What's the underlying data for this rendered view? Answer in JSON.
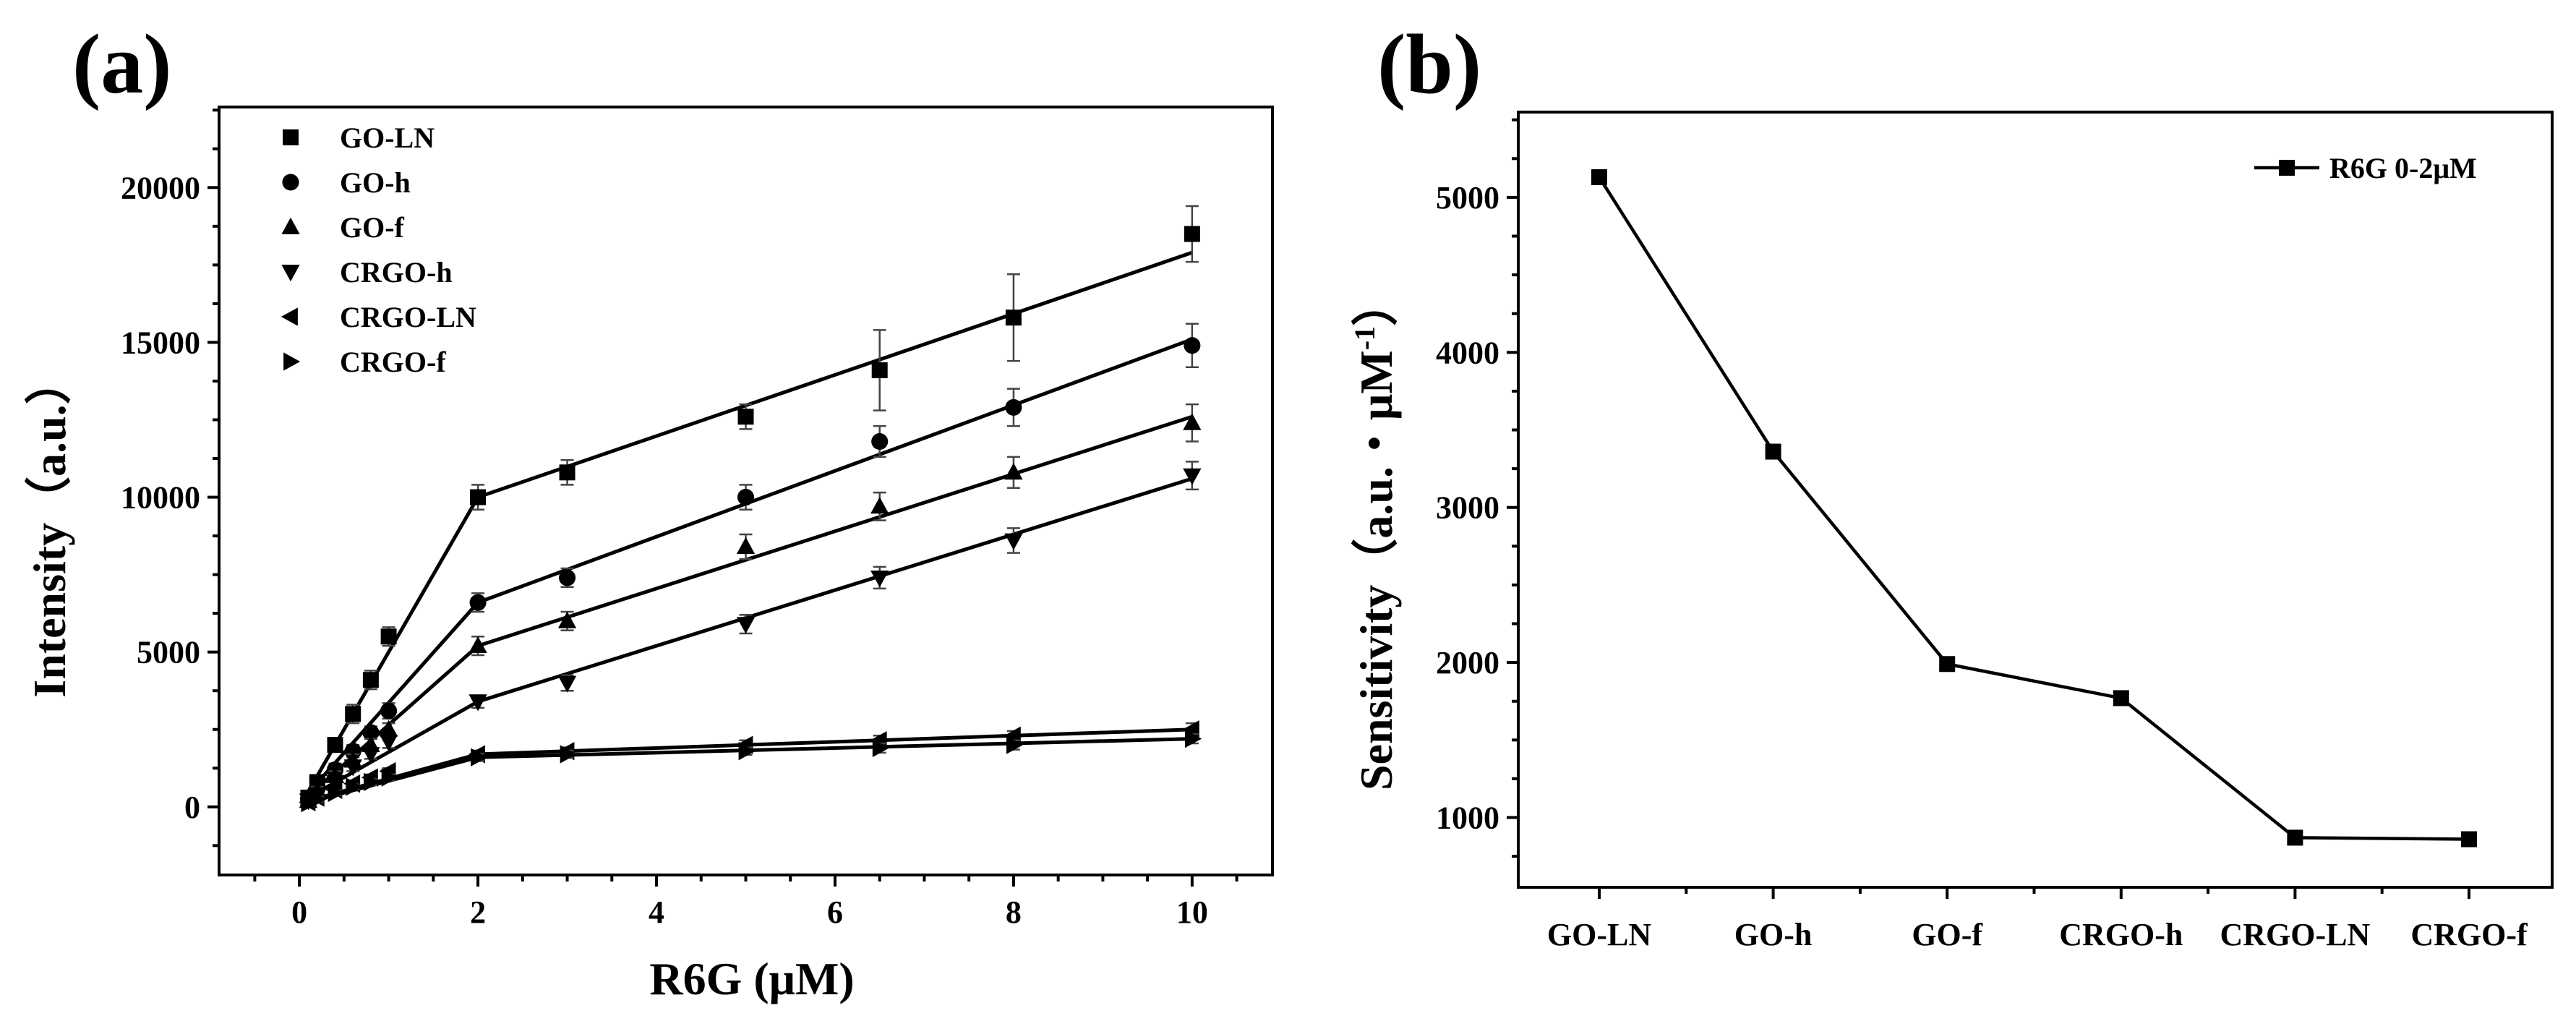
{
  "chart_data": [
    {
      "panel": "(a)",
      "type": "scatter",
      "xlabel": "R6G (μM)",
      "ylabel": "Intensity（a.u.）",
      "xlim": [
        -0.9,
        10.9
      ],
      "ylim": [
        -2200,
        22600
      ],
      "xticks": [
        0,
        2,
        4,
        6,
        8,
        10
      ],
      "yticks": [
        0,
        5000,
        10000,
        15000,
        20000
      ],
      "legend_position": "top-left",
      "series": [
        {
          "name": "GO-LN",
          "marker": "square",
          "x": [
            0.1,
            0.2,
            0.4,
            0.6,
            0.8,
            1,
            2,
            3,
            5,
            6.5,
            8,
            10
          ],
          "y": [
            300,
            800,
            2000,
            3000,
            4100,
            5500,
            10000,
            10800,
            12600,
            14100,
            15800,
            18500
          ],
          "err": [
            200,
            200,
            200,
            300,
            300,
            300,
            400,
            400,
            400,
            1300,
            1400,
            900
          ],
          "fit": [
            [
              0.1,
              500
            ],
            [
              2,
              10000
            ],
            [
              10,
              17900
            ]
          ]
        },
        {
          "name": "GO-h",
          "marker": "circle",
          "x": [
            0.1,
            0.2,
            0.4,
            0.6,
            0.8,
            1,
            2,
            3,
            5,
            6.5,
            8,
            10
          ],
          "y": [
            250,
            600,
            1200,
            1800,
            2400,
            3100,
            6600,
            7400,
            10000,
            11800,
            12900,
            14900
          ],
          "err": [
            150,
            150,
            200,
            200,
            200,
            250,
            300,
            300,
            400,
            500,
            600,
            700
          ],
          "fit": [
            [
              0.1,
              450
            ],
            [
              2,
              6600
            ],
            [
              10,
              15100
            ]
          ]
        },
        {
          "name": "GO-f",
          "marker": "triangle-up",
          "x": [
            0.1,
            0.2,
            0.4,
            0.6,
            0.8,
            1,
            2,
            3,
            5,
            6.5,
            8,
            10
          ],
          "y": [
            200,
            500,
            1000,
            1500,
            2000,
            2500,
            5200,
            6000,
            8400,
            9700,
            10800,
            12400
          ],
          "err": [
            150,
            150,
            150,
            200,
            200,
            200,
            300,
            300,
            400,
            450,
            500,
            600
          ],
          "fit": [
            [
              0.1,
              350
            ],
            [
              2,
              5200
            ],
            [
              10,
              12600
            ]
          ]
        },
        {
          "name": "CRGO-h",
          "marker": "triangle-down",
          "x": [
            0.1,
            0.2,
            0.4,
            0.6,
            0.8,
            1,
            2,
            3,
            5,
            6.5,
            8,
            10
          ],
          "y": [
            200,
            400,
            800,
            1300,
            1700,
            2100,
            3400,
            4000,
            5900,
            7400,
            8600,
            10700
          ],
          "err": [
            100,
            100,
            150,
            150,
            150,
            200,
            200,
            250,
            300,
            350,
            400,
            450
          ],
          "fit": [
            [
              0.1,
              300
            ],
            [
              2,
              3400
            ],
            [
              10,
              10600
            ]
          ]
        },
        {
          "name": "CRGO-LN",
          "marker": "triangle-left",
          "x": [
            0.1,
            0.2,
            0.4,
            0.6,
            0.8,
            1,
            2,
            3,
            5,
            6.5,
            8,
            10
          ],
          "y": [
            150,
            300,
            550,
            750,
            950,
            1150,
            1700,
            1800,
            2000,
            2150,
            2300,
            2500
          ],
          "err": [
            80,
            80,
            80,
            100,
            100,
            100,
            120,
            120,
            150,
            150,
            150,
            200
          ],
          "fit": [
            [
              0.1,
              200
            ],
            [
              2,
              1700
            ],
            [
              10,
              2500
            ]
          ]
        },
        {
          "name": "CRGO-f",
          "marker": "triangle-right",
          "x": [
            0.1,
            0.2,
            0.4,
            0.6,
            0.8,
            1,
            2,
            3,
            5,
            6.5,
            8,
            10
          ],
          "y": [
            120,
            250,
            450,
            650,
            800,
            950,
            1600,
            1700,
            1800,
            1900,
            2000,
            2200
          ],
          "err": [
            80,
            80,
            80,
            80,
            100,
            100,
            120,
            120,
            120,
            150,
            150,
            150
          ],
          "fit": [
            [
              0.1,
              150
            ],
            [
              2,
              1600
            ],
            [
              10,
              2200
            ]
          ]
        }
      ]
    },
    {
      "panel": "(b)",
      "type": "line",
      "xlabel": "",
      "ylabel": "Sensitivity（a.u.・μM⁻¹）",
      "ylabel_main": "Sensitivity（a.u.・μM",
      "ylabel_sup": "-1",
      "ylabel_end": "）",
      "categories": [
        "GO-LN",
        "GO-h",
        "GO-f",
        "CRGO-h",
        "CRGO-LN",
        "CRGO-f"
      ],
      "ylim": [
        550,
        5550
      ],
      "yticks": [
        1000,
        2000,
        3000,
        4000,
        5000
      ],
      "legend_position": "top-right",
      "series": [
        {
          "name": "R6G  0-2μM",
          "marker": "square",
          "values": [
            5130,
            3360,
            1990,
            1770,
            870,
            860
          ]
        }
      ]
    }
  ]
}
